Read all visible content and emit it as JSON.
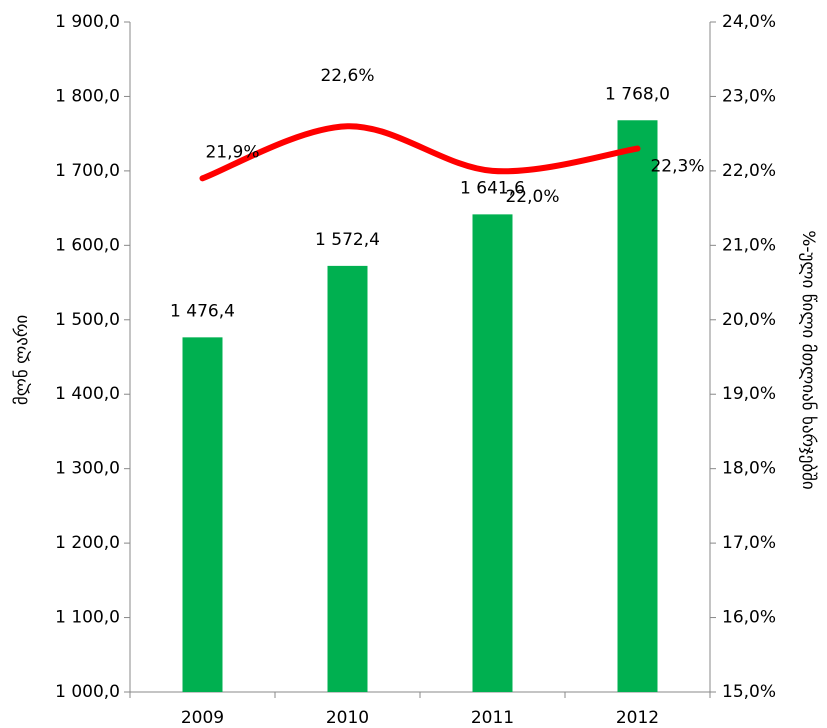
{
  "chart_data": {
    "type": "bar",
    "categories": [
      "2009",
      "2010",
      "2011",
      "2012"
    ],
    "series": [
      {
        "type": "bar",
        "color": "#00b050",
        "values": [
          1476.4,
          1572.4,
          1641.6,
          1768.0
        ],
        "value_labels": [
          "1 476,4",
          "1 572,4",
          "1 641,6",
          "1 768,0"
        ]
      },
      {
        "type": "line",
        "axis": "y2",
        "color": "#ff0000",
        "values": [
          21.9,
          22.6,
          22.0,
          22.3
        ],
        "value_labels": [
          "21,9%",
          "22,6%",
          "22,0%",
          "22,3%"
        ]
      }
    ],
    "ylabel": "მლნ ლარი",
    "y2label": "%-ული წილი მთლიან ხარჯებში",
    "ylim": [
      1000,
      1900
    ],
    "yticks": [
      {
        "value": 1000,
        "label": "1 000,0"
      },
      {
        "value": 1100,
        "label": "1 100,0"
      },
      {
        "value": 1200,
        "label": "1 200,0"
      },
      {
        "value": 1300,
        "label": "1 300,0"
      },
      {
        "value": 1400,
        "label": "1 400,0"
      },
      {
        "value": 1500,
        "label": "1 500,0"
      },
      {
        "value": 1600,
        "label": "1 600,0"
      },
      {
        "value": 1700,
        "label": "1 700,0"
      },
      {
        "value": 1800,
        "label": "1 800,0"
      },
      {
        "value": 1900,
        "label": "1 900,0"
      }
    ],
    "y2lim": [
      15,
      24
    ],
    "y2ticks": [
      {
        "value": 15,
        "label": "15,0%"
      },
      {
        "value": 16,
        "label": "16,0%"
      },
      {
        "value": 17,
        "label": "17,0%"
      },
      {
        "value": 18,
        "label": "18,0%"
      },
      {
        "value": 19,
        "label": "19,0%"
      },
      {
        "value": 20,
        "label": "20,0%"
      },
      {
        "value": 21,
        "label": "21,0%"
      },
      {
        "value": 22,
        "label": "22,0%"
      },
      {
        "value": 23,
        "label": "23,0%"
      },
      {
        "value": 24,
        "label": "24,0%"
      }
    ]
  }
}
